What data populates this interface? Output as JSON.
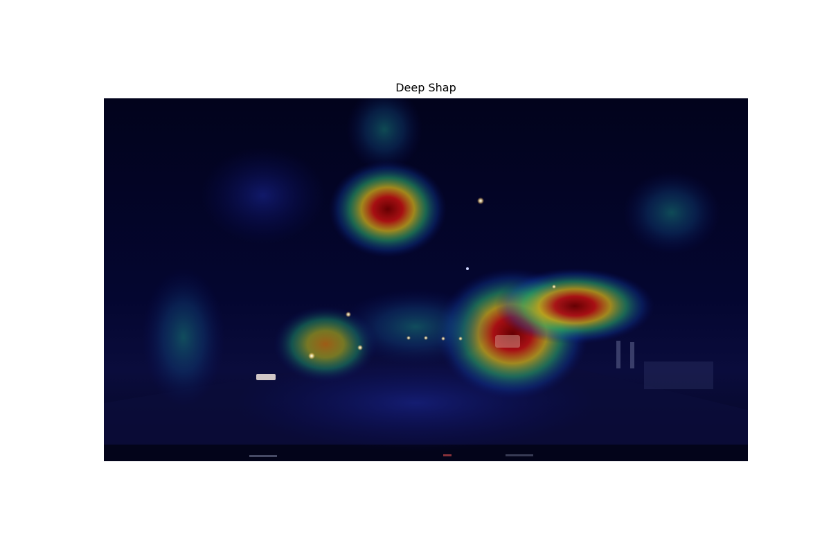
{
  "figure": {
    "title": "Deep Shap",
    "image_description_kind": "night dashcam road scene with saliency heatmap overlay",
    "colormap": "jet",
    "colors": {
      "background": "#ffffff",
      "scene_sky": "#02031f",
      "heat_low": "#0b0f6a",
      "heat_mid": "#11a36a",
      "heat_high": "#d8d21a",
      "heat_peak": "#7a0606"
    }
  }
}
